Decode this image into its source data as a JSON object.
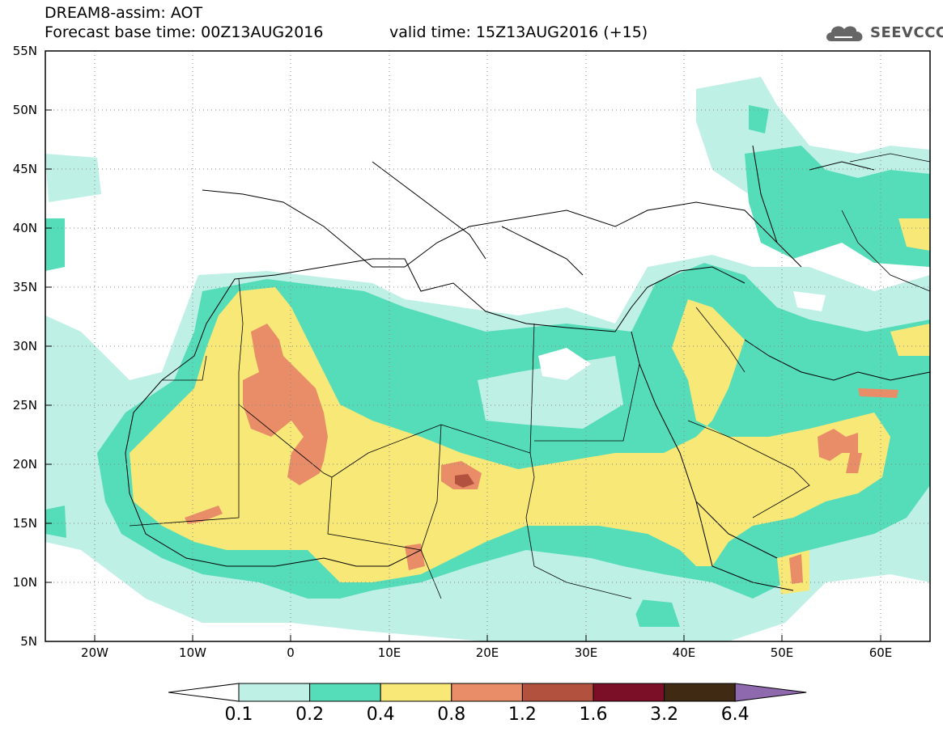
{
  "header": {
    "line1": "DREAM8-assim: AOT",
    "line2": "Forecast base time: 00Z13AUG2016",
    "line3": "valid time: 15Z13AUG2016 (+15)",
    "logo_text": "SEEVCCC"
  },
  "map": {
    "lat_labels": [
      "55N",
      "50N",
      "45N",
      "40N",
      "35N",
      "30N",
      "25N",
      "20N",
      "15N",
      "10N",
      "5N"
    ],
    "lon_labels": [
      "20W",
      "10W",
      "0",
      "10E",
      "20E",
      "30E",
      "40E",
      "50E",
      "60E"
    ],
    "extent": {
      "lon_min": -25,
      "lon_max": 65,
      "lat_min": 5,
      "lat_max": 55
    }
  },
  "colorbar": {
    "levels": [
      "0.1",
      "0.2",
      "0.4",
      "0.8",
      "1.2",
      "1.6",
      "3.2",
      "6.4"
    ],
    "colors": [
      "#ffffff",
      "#bff0e6",
      "#55dcb9",
      "#f7e878",
      "#e88d68",
      "#b3513f",
      "#7b0f27",
      "#412a14",
      "#8f69ae"
    ]
  },
  "icons": [
    "cloud-logo-icon"
  ]
}
